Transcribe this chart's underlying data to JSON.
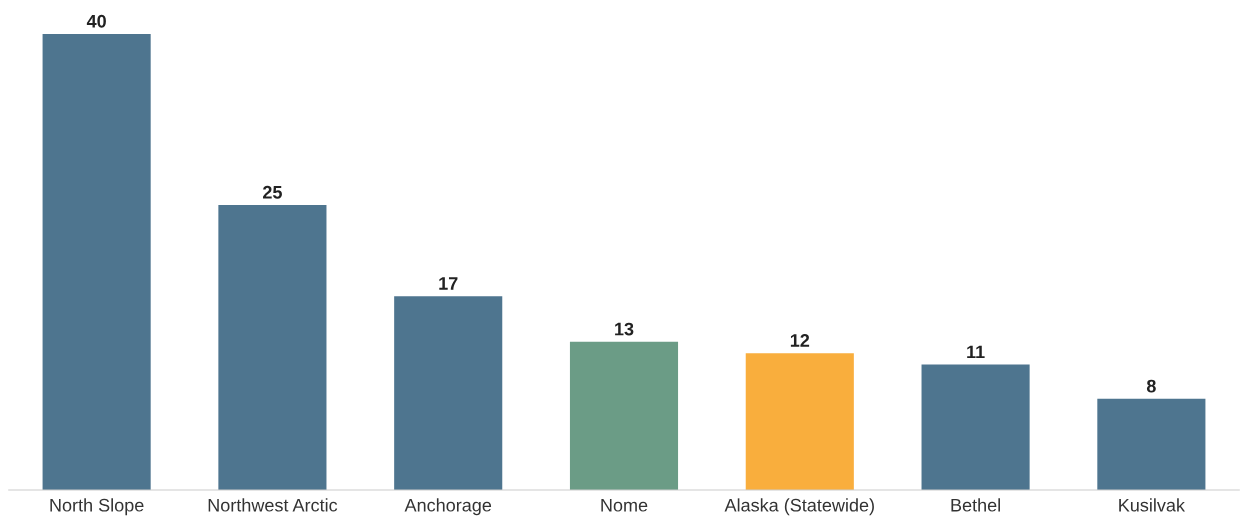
{
  "chart_data": {
    "type": "bar",
    "categories": [
      "North Slope",
      "Northwest Arctic",
      "Anchorage",
      "Nome",
      "Alaska (Statewide)",
      "Bethel",
      "Kusilvak"
    ],
    "values": [
      40,
      25,
      17,
      13,
      12,
      11,
      8
    ],
    "colors": [
      "#4e758f",
      "#4e758f",
      "#4e758f",
      "#6b9c86",
      "#f9ae3d",
      "#4e758f",
      "#4e758f"
    ],
    "data_labels": true,
    "grid": false,
    "legend": false
  }
}
